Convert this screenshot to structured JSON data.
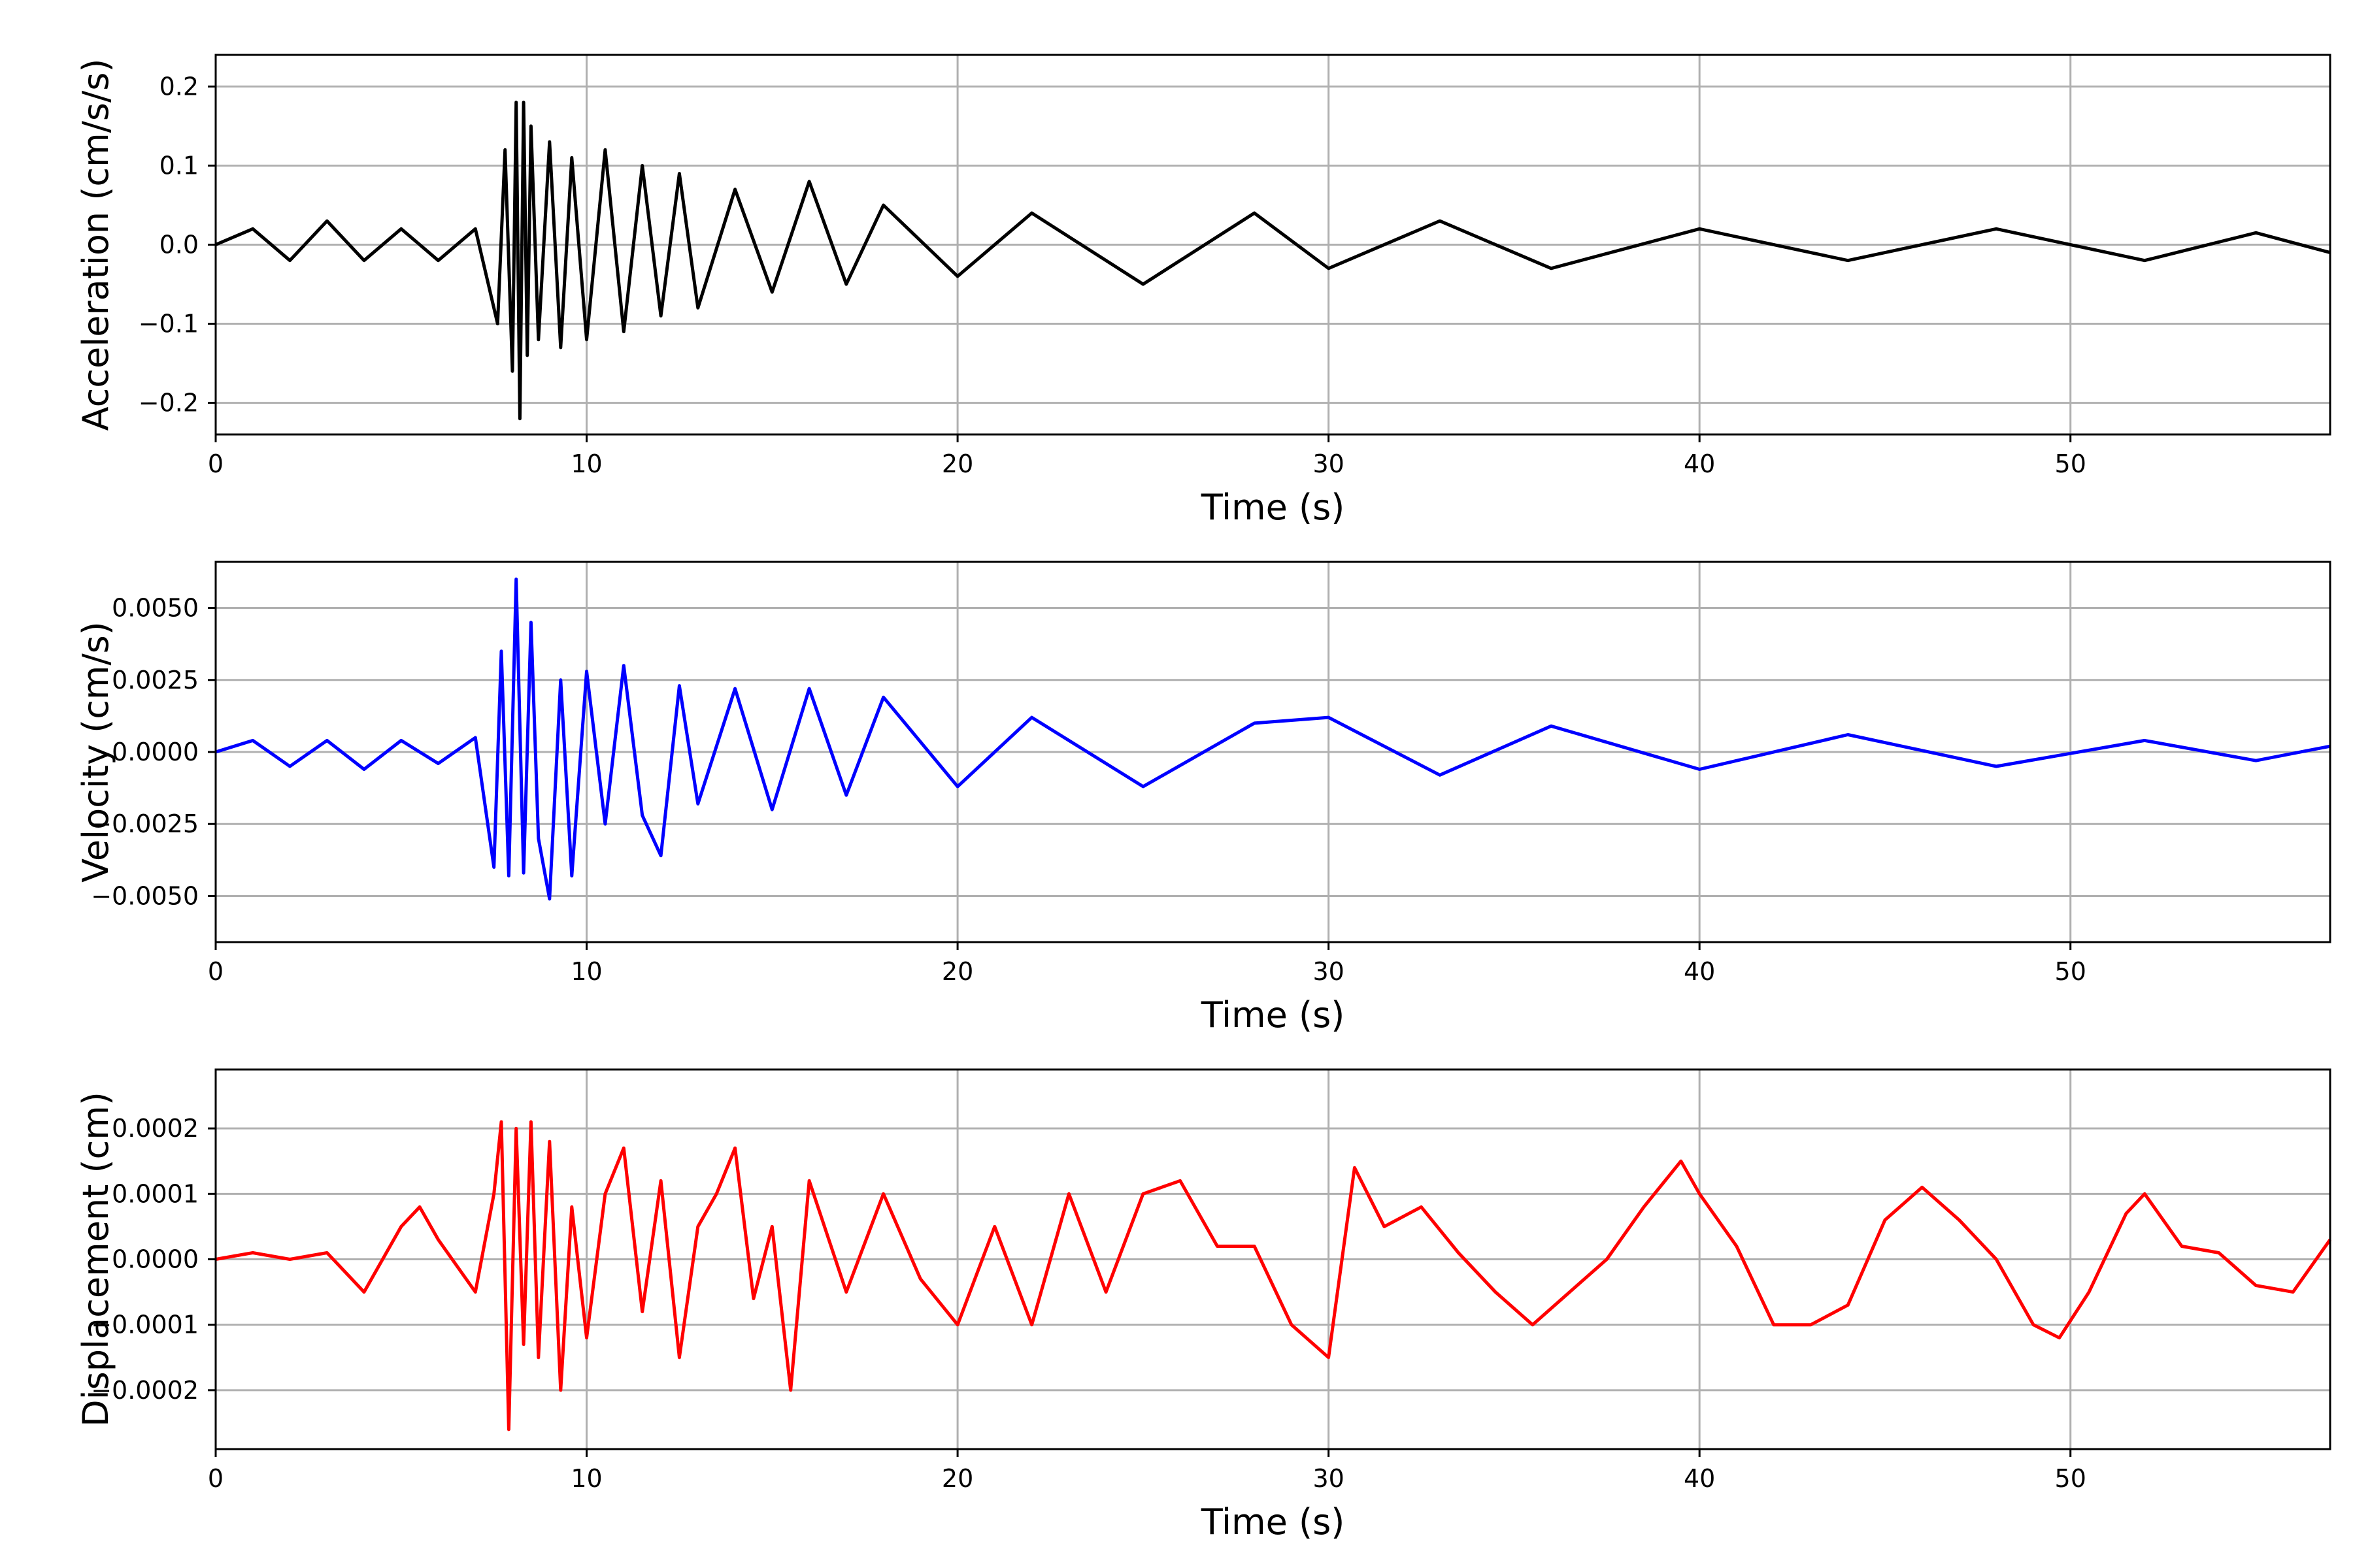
{
  "chart_data": [
    {
      "type": "line",
      "xlabel": "Time (s)",
      "ylabel": "Acceleration (cm/s/s)",
      "xlim": [
        0,
        57
      ],
      "ylim": [
        -0.24,
        0.24
      ],
      "xticks": [
        0,
        10,
        20,
        30,
        40,
        50
      ],
      "yticks": [
        -0.2,
        -0.1,
        0.0,
        0.1,
        0.2
      ],
      "ytick_labels": [
        "−0.2",
        "−0.1",
        "0.0",
        "0.1",
        "0.2"
      ],
      "grid": true,
      "series": [
        {
          "color": "#000000",
          "x": [
            0,
            1,
            2,
            3,
            4,
            5,
            6,
            7,
            7.6,
            7.8,
            8.0,
            8.1,
            8.2,
            8.3,
            8.4,
            8.5,
            8.7,
            9.0,
            9.3,
            9.6,
            10.0,
            10.5,
            11.0,
            11.5,
            12.0,
            12.5,
            13.0,
            14.0,
            15.0,
            16.0,
            17.0,
            18.0,
            20.0,
            22.0,
            25.0,
            28.0,
            30.0,
            33.0,
            36.0,
            40.0,
            44.0,
            48.0,
            52.0,
            55.0,
            57.0
          ],
          "y": [
            0.0,
            0.02,
            -0.02,
            0.03,
            -0.02,
            0.02,
            -0.02,
            0.02,
            -0.1,
            0.12,
            -0.16,
            0.18,
            -0.22,
            0.18,
            -0.14,
            0.15,
            -0.12,
            0.13,
            -0.13,
            0.11,
            -0.12,
            0.12,
            -0.11,
            0.1,
            -0.09,
            0.09,
            -0.08,
            0.07,
            -0.06,
            0.08,
            -0.05,
            0.05,
            -0.04,
            0.04,
            -0.05,
            0.04,
            -0.03,
            0.03,
            -0.03,
            0.02,
            -0.02,
            0.02,
            -0.02,
            0.015,
            -0.01
          ]
        }
      ]
    },
    {
      "type": "line",
      "xlabel": "Time (s)",
      "ylabel": "Velocity (cm/s)",
      "xlim": [
        0,
        57
      ],
      "ylim": [
        -0.0066,
        0.0066
      ],
      "xticks": [
        0,
        10,
        20,
        30,
        40,
        50
      ],
      "yticks": [
        -0.005,
        -0.0025,
        0.0,
        0.0025,
        0.005
      ],
      "ytick_labels": [
        "−0.0050",
        "−0.0025",
        "0.0000",
        "0.0025",
        "0.0050"
      ],
      "grid": true,
      "series": [
        {
          "color": "#0000ff",
          "x": [
            0,
            1,
            2,
            3,
            4,
            5,
            6,
            7,
            7.5,
            7.7,
            7.9,
            8.1,
            8.3,
            8.5,
            8.7,
            9.0,
            9.3,
            9.6,
            10.0,
            10.5,
            11.0,
            11.5,
            12.0,
            12.5,
            13.0,
            14.0,
            15.0,
            16.0,
            17.0,
            18.0,
            20.0,
            22.0,
            25.0,
            28.0,
            30.0,
            33.0,
            36.0,
            40.0,
            44.0,
            48.0,
            52.0,
            55.0,
            57.0
          ],
          "y": [
            0.0,
            0.0004,
            -0.0005,
            0.0004,
            -0.0006,
            0.0004,
            -0.0004,
            0.0005,
            -0.004,
            0.0035,
            -0.0043,
            0.006,
            -0.0042,
            0.0045,
            -0.003,
            -0.0051,
            0.0025,
            -0.0043,
            0.0028,
            -0.0025,
            0.003,
            -0.0022,
            -0.0036,
            0.0023,
            -0.0018,
            0.0022,
            -0.002,
            0.0022,
            -0.0015,
            0.0019,
            -0.0012,
            0.0012,
            -0.0012,
            0.001,
            0.0012,
            -0.0008,
            0.0009,
            -0.0006,
            0.0006,
            -0.0005,
            0.0004,
            -0.0003,
            0.0002
          ]
        }
      ]
    },
    {
      "type": "line",
      "xlabel": "Time (s)",
      "ylabel": "Displacement (cm)",
      "xlim": [
        0,
        57
      ],
      "ylim": [
        -0.00029,
        0.00029
      ],
      "xticks": [
        0,
        10,
        20,
        30,
        40,
        50
      ],
      "yticks": [
        -0.0002,
        -0.0001,
        0.0,
        0.0001,
        0.0002
      ],
      "ytick_labels": [
        "−0.0002",
        "−0.0001",
        "0.0000",
        "0.0001",
        "0.0002"
      ],
      "grid": true,
      "series": [
        {
          "color": "#ff0000",
          "x": [
            0,
            1,
            2,
            3,
            4,
            5,
            5.5,
            6,
            7,
            7.5,
            7.7,
            7.9,
            8.1,
            8.3,
            8.5,
            8.7,
            9.0,
            9.3,
            9.6,
            10.0,
            10.5,
            11.0,
            11.5,
            12.0,
            12.5,
            13.0,
            13.5,
            14.0,
            14.5,
            15.0,
            15.5,
            16.0,
            17.0,
            18.0,
            19.0,
            20.0,
            21.0,
            22.0,
            23.0,
            24.0,
            25.0,
            26.0,
            27.0,
            28.0,
            29.0,
            30.0,
            30.7,
            31.5,
            32.5,
            33.5,
            34.5,
            35.5,
            36.5,
            37.5,
            38.5,
            39.5,
            40.0,
            41.0,
            42.0,
            43.0,
            44.0,
            45.0,
            46.0,
            47.0,
            48.0,
            49.0,
            49.7,
            50.5,
            51.5,
            52.0,
            53.0,
            54.0,
            55.0,
            56.0,
            57.0
          ],
          "y": [
            0.0,
            1e-05,
            0.0,
            1e-05,
            -5e-05,
            5e-05,
            8e-05,
            3e-05,
            -5e-05,
            0.0001,
            0.00021,
            -0.00026,
            0.0002,
            -0.00013,
            0.00021,
            -0.00015,
            0.00018,
            -0.0002,
            8e-05,
            -0.00012,
            0.0001,
            0.00017,
            -8e-05,
            0.00012,
            -0.00015,
            5e-05,
            0.0001,
            0.00017,
            -6e-05,
            5e-05,
            -0.0002,
            0.00012,
            -5e-05,
            0.0001,
            -3e-05,
            -0.0001,
            5e-05,
            -0.0001,
            0.0001,
            -5e-05,
            0.0001,
            0.00012,
            2e-05,
            2e-05,
            -0.0001,
            -0.00015,
            0.00014,
            5e-05,
            8e-05,
            1e-05,
            -5e-05,
            -0.0001,
            -5e-05,
            0.0,
            8e-05,
            0.00015,
            0.0001,
            2e-05,
            -0.0001,
            -0.0001,
            -7e-05,
            6e-05,
            0.00011,
            6e-05,
            0.0,
            -0.0001,
            -0.00012,
            -5e-05,
            7e-05,
            0.0001,
            2e-05,
            1e-05,
            -4e-05,
            -5e-05,
            3e-05
          ]
        }
      ]
    }
  ]
}
